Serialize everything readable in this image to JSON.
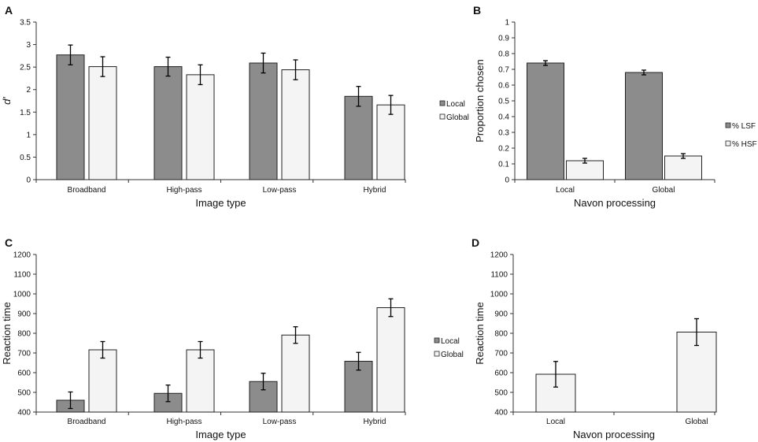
{
  "colors": {
    "local": "#8c8c8c",
    "global": "#f4f4f4",
    "stroke": "#222222",
    "axis": "#333333"
  },
  "chart_data": [
    {
      "panel": "A",
      "type": "bar",
      "xlabel": "Image type",
      "ylabel": "d′",
      "ylim": [
        0,
        3.5
      ],
      "yticks": [
        "0",
        "0.5",
        "1",
        "1.5",
        "2",
        "2.5",
        "3",
        "3.5"
      ],
      "categories": [
        "Broadband",
        "High-pass",
        "Low-pass",
        "Hybrid"
      ],
      "legend_position": "right",
      "series": [
        {
          "name": "Local",
          "color_key": "local",
          "values": [
            2.77,
            2.51,
            2.59,
            1.85
          ],
          "errors": [
            0.22,
            0.21,
            0.22,
            0.22
          ]
        },
        {
          "name": "Global",
          "color_key": "global",
          "values": [
            2.51,
            2.33,
            2.44,
            1.66
          ],
          "errors": [
            0.22,
            0.22,
            0.22,
            0.21
          ]
        }
      ]
    },
    {
      "panel": "B",
      "type": "bar",
      "xlabel": "Navon processing",
      "ylabel": "Proportion chosen",
      "ylim": [
        0,
        1
      ],
      "yticks": [
        "0",
        "0.1",
        "0.2",
        "0.3",
        "0.4",
        "0.5",
        "0.6",
        "0.7",
        "0.8",
        "0.9",
        "1"
      ],
      "categories": [
        "Local",
        "Global"
      ],
      "legend_position": "right",
      "series": [
        {
          "name": "% LSF",
          "color_key": "local",
          "values": [
            0.74,
            0.68
          ],
          "errors": [
            0.015,
            0.015
          ]
        },
        {
          "name": "% HSF",
          "color_key": "global",
          "values": [
            0.12,
            0.15
          ],
          "errors": [
            0.015,
            0.015
          ]
        }
      ]
    },
    {
      "panel": "C",
      "type": "bar",
      "xlabel": "Image type",
      "ylabel": "Reaction time",
      "ylim": [
        400,
        1200
      ],
      "yticks": [
        "400",
        "500",
        "600",
        "700",
        "800",
        "900",
        "1000",
        "1100",
        "1200"
      ],
      "categories": [
        "Broadband",
        "High-pass",
        "Low-pass",
        "Hybrid"
      ],
      "legend_position": "right",
      "series": [
        {
          "name": "Local",
          "color_key": "local",
          "values": [
            460,
            495,
            555,
            658
          ],
          "errors": [
            42,
            42,
            42,
            45
          ]
        },
        {
          "name": "Global",
          "color_key": "global",
          "values": [
            716,
            716,
            791,
            930
          ],
          "errors": [
            42,
            42,
            42,
            45
          ]
        }
      ]
    },
    {
      "panel": "D",
      "type": "bar",
      "xlabel": "Navon processing",
      "ylabel": "Reaction time",
      "ylim": [
        400,
        1200
      ],
      "yticks": [
        "400",
        "500",
        "600",
        "700",
        "800",
        "900",
        "1000",
        "1100",
        "1200"
      ],
      "categories": [
        "Local",
        "Global"
      ],
      "legend_position": "none",
      "series": [
        {
          "name": "Reaction time",
          "color_key": "global",
          "values": [
            592,
            806
          ],
          "errors": [
            65,
            68
          ]
        }
      ]
    }
  ]
}
